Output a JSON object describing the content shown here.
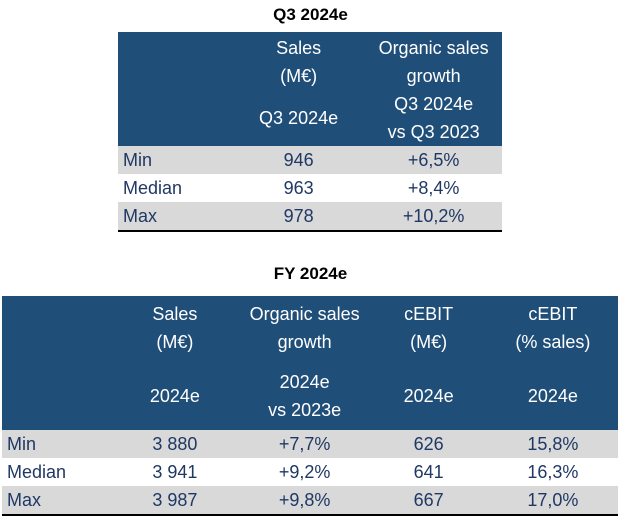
{
  "q3": {
    "title": "Q3 2024e",
    "headers": [
      {
        "top": [
          "Sales",
          "(M€)"
        ],
        "bottom": [
          "Q3 2024e"
        ]
      },
      {
        "top": [
          "Organic sales",
          "growth"
        ],
        "bottom": [
          "Q3 2024e",
          "vs Q3 2023"
        ]
      }
    ],
    "rows": [
      {
        "label": "Min",
        "values": [
          "946",
          "+6,5%"
        ]
      },
      {
        "label": "Median",
        "values": [
          "963",
          "+8,4%"
        ]
      },
      {
        "label": "Max",
        "values": [
          "978",
          "+10,2%"
        ]
      }
    ]
  },
  "fy": {
    "title": "FY 2024e",
    "headers": [
      {
        "top": [
          "Sales",
          "(M€)"
        ],
        "bottom": [
          "2024e"
        ]
      },
      {
        "top": [
          "Organic sales",
          "growth"
        ],
        "bottom": [
          "2024e",
          "vs 2023e"
        ]
      },
      {
        "top": [
          "cEBIT",
          "(M€)"
        ],
        "bottom": [
          "2024e"
        ]
      },
      {
        "top": [
          "cEBIT",
          "(% sales)"
        ],
        "bottom": [
          "2024e"
        ]
      }
    ],
    "rows": [
      {
        "label": "Min",
        "values": [
          "3 880",
          "+7,7%",
          "626",
          "15,8%"
        ]
      },
      {
        "label": "Median",
        "values": [
          "3 941",
          "+9,2%",
          "641",
          "16,3%"
        ]
      },
      {
        "label": "Max",
        "values": [
          "3 987",
          "+9,8%",
          "667",
          "17,0%"
        ]
      }
    ]
  },
  "colors": {
    "header_bg": "#1f4e79",
    "header_text": "#ffffff",
    "row_shade": "#d9d9d9",
    "body_text": "#1f3864"
  }
}
